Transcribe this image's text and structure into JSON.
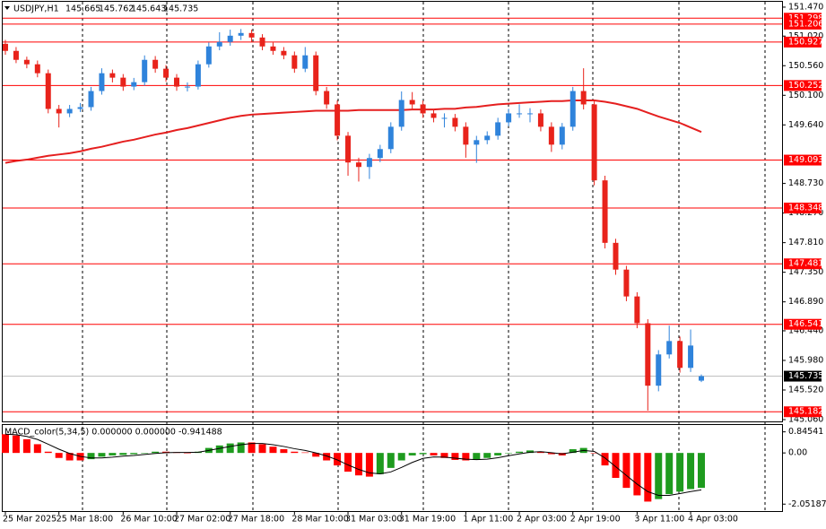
{
  "chart_data": [
    {
      "type": "candlestick",
      "title": "USDJPY,H1",
      "categories": [
        "25 Mar 2025",
        null,
        null,
        null,
        null,
        "25 Mar 18:00",
        null,
        null,
        null,
        null,
        null,
        "26 Mar 10:00",
        null,
        null,
        null,
        null,
        "27 Mar 02:00",
        null,
        null,
        null,
        null,
        "27 Mar 18:00",
        null,
        null,
        null,
        null,
        null,
        "28 Mar 10:00",
        null,
        null,
        null,
        null,
        "31 Mar 03:00",
        null,
        null,
        null,
        null,
        "31 Mar 19:00",
        null,
        null,
        null,
        null,
        null,
        "1 Apr 11:00",
        null,
        null,
        null,
        null,
        "2 Apr 03:00",
        null,
        null,
        null,
        null,
        "2 Apr 19:00",
        null,
        null,
        null,
        null,
        null,
        "3 Apr 11:00",
        null,
        null,
        null,
        null,
        "4 Apr 03:00",
        null
      ],
      "open": [
        150.9,
        150.79,
        150.651,
        150.582,
        150.443,
        149.888,
        149.819,
        149.888,
        149.916,
        150.166,
        150.443,
        150.374,
        150.235,
        150.304,
        150.651,
        150.513,
        150.374,
        150.235,
        150.235,
        150.582,
        150.859,
        150.929,
        151.026,
        151.068,
        150.998,
        150.859,
        150.79,
        150.721,
        150.513,
        150.721,
        150.166,
        149.958,
        149.472,
        149.056,
        148.986,
        149.125,
        149.264,
        149.611,
        150.027,
        149.958,
        149.819,
        149.749,
        149.749,
        149.611,
        149.333,
        149.403,
        149.472,
        149.68,
        149.819,
        149.819,
        149.819,
        149.611,
        149.333,
        149.611,
        150.166,
        149.958,
        148.778,
        147.807,
        147.391,
        146.974,
        146.558,
        145.587,
        146.073,
        146.281,
        145.864,
        145.665
      ],
      "high": [
        150.96,
        150.85,
        150.7,
        150.64,
        150.5,
        149.95,
        149.95,
        149.98,
        150.23,
        150.52,
        150.5,
        150.43,
        150.37,
        150.72,
        150.71,
        150.57,
        150.43,
        150.3,
        150.64,
        150.92,
        151.08,
        151.12,
        151.13,
        151.12,
        151.05,
        150.92,
        150.85,
        150.78,
        150.85,
        150.78,
        150.23,
        150.02,
        149.53,
        149.13,
        149.19,
        149.33,
        149.68,
        150.16,
        150.15,
        150.02,
        149.88,
        149.82,
        149.81,
        149.68,
        149.47,
        149.54,
        149.75,
        149.89,
        149.96,
        149.9,
        149.88,
        149.68,
        149.67,
        150.23,
        150.52,
        150.02,
        148.85,
        147.87,
        147.45,
        147.04,
        146.62,
        146.14,
        146.52,
        146.35,
        146.46,
        145.762
      ],
      "low": [
        150.73,
        150.6,
        150.52,
        150.38,
        149.82,
        149.6,
        149.76,
        149.84,
        149.86,
        150.11,
        150.3,
        150.17,
        150.18,
        150.25,
        150.45,
        150.31,
        150.17,
        150.16,
        150.19,
        150.53,
        150.8,
        150.87,
        150.96,
        150.93,
        150.8,
        150.73,
        150.66,
        150.45,
        150.46,
        150.1,
        149.89,
        149.4,
        148.85,
        148.76,
        148.8,
        149.06,
        149.2,
        149.55,
        149.89,
        149.75,
        149.68,
        149.6,
        149.54,
        149.13,
        149.05,
        149.34,
        149.41,
        149.62,
        149.75,
        149.68,
        149.54,
        149.22,
        149.26,
        149.55,
        149.88,
        148.7,
        147.72,
        147.31,
        146.9,
        146.48,
        145.2,
        145.5,
        146.01,
        145.79,
        145.8,
        145.643
      ],
      "close": [
        150.79,
        150.651,
        150.582,
        150.443,
        149.888,
        149.819,
        149.888,
        149.916,
        150.166,
        150.443,
        150.374,
        150.235,
        150.304,
        150.651,
        150.513,
        150.374,
        150.235,
        150.235,
        150.582,
        150.859,
        150.929,
        151.026,
        151.068,
        150.998,
        150.859,
        150.79,
        150.721,
        150.513,
        150.721,
        150.166,
        149.958,
        149.472,
        149.056,
        148.986,
        149.125,
        149.264,
        149.611,
        150.027,
        149.958,
        149.819,
        149.749,
        149.749,
        149.611,
        149.333,
        149.403,
        149.472,
        149.68,
        149.819,
        149.819,
        149.819,
        149.611,
        149.333,
        149.611,
        150.166,
        149.958,
        148.778,
        147.807,
        147.391,
        146.974,
        146.558,
        145.587,
        146.073,
        146.281,
        145.864,
        146.211,
        145.735
      ],
      "up_color": "#2f83db",
      "down_color": "#e8231b",
      "moving_average": {
        "color": "#e51f1f",
        "values": [
          149.05,
          149.08,
          149.1,
          149.13,
          149.16,
          149.18,
          149.2,
          149.23,
          149.27,
          149.3,
          149.34,
          149.38,
          149.41,
          149.45,
          149.49,
          149.52,
          149.56,
          149.59,
          149.63,
          149.67,
          149.71,
          149.75,
          149.78,
          149.8,
          149.81,
          149.82,
          149.83,
          149.84,
          149.85,
          149.86,
          149.86,
          149.86,
          149.86,
          149.87,
          149.87,
          149.87,
          149.87,
          149.87,
          149.88,
          149.88,
          149.88,
          149.89,
          149.89,
          149.91,
          149.92,
          149.94,
          149.96,
          149.97,
          149.98,
          149.99,
          150.0,
          150.01,
          150.01,
          150.02,
          150.02,
          150.02,
          150.0,
          149.97,
          149.93,
          149.89,
          149.83,
          149.77,
          149.72,
          149.67,
          149.6,
          149.53
        ]
      },
      "levels": {
        "color": "#ff0000",
        "values": [
          151.298,
          151.206,
          150.927,
          150.252,
          149.093,
          148.348,
          147.481,
          146.541,
          145.182
        ]
      },
      "ylim": [
        145.032,
        151.553
      ],
      "yticks": [
        {
          "value": 151.47,
          "label": "151.470"
        },
        {
          "value": 151.02,
          "label": "151.020"
        },
        {
          "value": 150.56,
          "label": "150.560"
        },
        {
          "value": 150.1,
          "label": "150.100"
        },
        {
          "value": 149.64,
          "label": "149.640"
        },
        {
          "value": 148.73,
          "label": "148.730"
        },
        {
          "value": 148.27,
          "label": "148.270"
        },
        {
          "value": 147.81,
          "label": "147.810"
        },
        {
          "value": 147.35,
          "label": "147.350"
        },
        {
          "value": 146.89,
          "label": "146.890"
        },
        {
          "value": 146.44,
          "label": "146.440"
        },
        {
          "value": 145.98,
          "label": "145.980"
        },
        {
          "value": 145.52,
          "label": "145.520"
        },
        {
          "value": 145.06,
          "label": "145.060"
        }
      ]
    },
    {
      "type": "bar",
      "title": "MACD_color(5,34,5) 0.000000 0.000000 -0.941488",
      "values": [
        0.75,
        0.7,
        0.55,
        0.35,
        0.05,
        -0.2,
        -0.3,
        -0.3,
        -0.25,
        -0.15,
        -0.1,
        -0.08,
        -0.05,
        0,
        0.05,
        0.05,
        0.03,
        0,
        0.05,
        0.2,
        0.3,
        0.38,
        0.42,
        0.42,
        0.35,
        0.25,
        0.15,
        0.05,
        0.02,
        -0.15,
        -0.3,
        -0.5,
        -0.75,
        -0.9,
        -0.95,
        -0.85,
        -0.6,
        -0.3,
        -0.1,
        -0.05,
        -0.1,
        -0.2,
        -0.28,
        -0.3,
        -0.28,
        -0.2,
        -0.1,
        0,
        0.05,
        0.1,
        0.05,
        -0.05,
        -0.1,
        0.15,
        0.2,
        0,
        -0.5,
        -1,
        -1.4,
        -1.7,
        -1.95,
        -1.85,
        -1.65,
        -1.55,
        -1.45,
        -1.4
      ],
      "up_color": "#1e9b1e",
      "down_color": "#ff0000",
      "signal": {
        "color": "#000000",
        "values": [
          0.75,
          0.73,
          0.66,
          0.54,
          0.35,
          0.15,
          -0.02,
          -0.14,
          -0.2,
          -0.2,
          -0.17,
          -0.13,
          -0.1,
          -0.06,
          -0.02,
          0.01,
          0.02,
          0.02,
          0.03,
          0.1,
          0.18,
          0.26,
          0.33,
          0.38,
          0.38,
          0.33,
          0.26,
          0.17,
          0.1,
          0,
          -0.12,
          -0.28,
          -0.48,
          -0.66,
          -0.8,
          -0.84,
          -0.76,
          -0.58,
          -0.38,
          -0.22,
          -0.16,
          -0.17,
          -0.21,
          -0.25,
          -0.27,
          -0.25,
          -0.19,
          -0.11,
          -0.04,
          0.03,
          0.05,
          0.01,
          -0.04,
          0.03,
          0.1,
          0.06,
          -0.2,
          -0.55,
          -0.9,
          -1.25,
          -1.55,
          -1.7,
          -1.7,
          -1.63,
          -1.55,
          -1.48
        ]
      },
      "ylim": [
        -2.33,
        1.12
      ],
      "yticks": [
        0.84541,
        {
          "value": 0,
          "label": "0.00"
        },
        -2.051871
      ]
    }
  ]
}
